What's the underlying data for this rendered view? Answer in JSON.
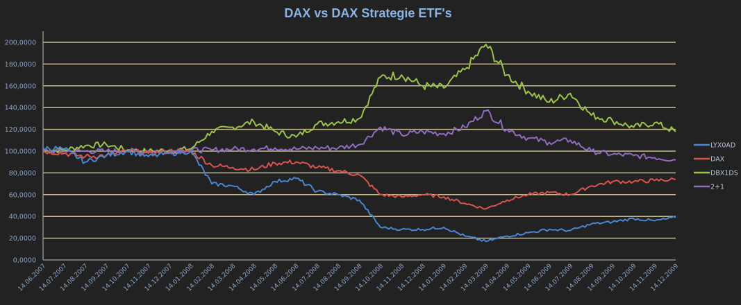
{
  "chart_data": {
    "type": "line",
    "title": "DAX vs DAX Strategie ETF's",
    "xlabel": "",
    "ylabel": "",
    "ylim": [
      0,
      200
    ],
    "yticks": [
      "0,0000",
      "20,0000",
      "40,0000",
      "60,0000",
      "80,0000",
      "100,0000",
      "120,0000",
      "140,0000",
      "160,0000",
      "180,0000",
      "200,0000"
    ],
    "grid": true,
    "legend_position": "right",
    "categories": [
      "14.06.2007",
      "14.07.2007",
      "14.08.2007",
      "14.09.2007",
      "14.10.2007",
      "14.11.2007",
      "14.12.2007",
      "14.01.2008",
      "14.02.2008",
      "14.03.2008",
      "14.04.2008",
      "14.05.2008",
      "14.06.2008",
      "14.07.2008",
      "14.08.2008",
      "14.09.2008",
      "14.10.2008",
      "14.11.2008",
      "14.12.2008",
      "14.01.2009",
      "14.02.2009",
      "14.03.2009",
      "14.04.2009",
      "14.05.2009",
      "14.06.2009",
      "14.07.2009",
      "14.08.2009",
      "14.09.2009",
      "14.10.2009",
      "14.11.2009",
      "14.12.2009"
    ],
    "series": [
      {
        "name": "LYX0AD",
        "color": "#4a86d0",
        "values": [
          103,
          102,
          90,
          96,
          100,
          95,
          98,
          100,
          70,
          68,
          60,
          72,
          75,
          63,
          60,
          55,
          30,
          28,
          28,
          30,
          22,
          17,
          22,
          25,
          28,
          27,
          33,
          35,
          38,
          36,
          39
        ]
      },
      {
        "name": "DAX",
        "color": "#d9534f",
        "values": [
          100,
          98,
          95,
          96,
          100,
          98,
          100,
          100,
          87,
          85,
          83,
          89,
          90,
          85,
          82,
          78,
          60,
          58,
          60,
          58,
          52,
          47,
          55,
          60,
          62,
          60,
          68,
          72,
          72,
          73,
          74
        ]
      },
      {
        "name": "DBX1DS",
        "color": "#9bc34a",
        "values": [
          100,
          101,
          105,
          106,
          101,
          100,
          101,
          102,
          118,
          122,
          127,
          118,
          113,
          125,
          127,
          130,
          168,
          170,
          160,
          158,
          175,
          198,
          170,
          155,
          145,
          153,
          133,
          128,
          122,
          126,
          118
        ]
      },
      {
        "name": "2+1",
        "color": "#8f6cc0",
        "values": [
          100,
          100,
          100,
          100,
          100,
          100,
          100,
          101,
          101,
          102,
          102,
          103,
          102,
          103,
          103,
          106,
          122,
          115,
          118,
          116,
          122,
          137,
          120,
          112,
          108,
          110,
          100,
          97,
          96,
          94,
          92
        ]
      }
    ]
  },
  "colors": {
    "background": "#222222",
    "gridline": "#c8b98e",
    "axis": "#8c8c8c",
    "title": "#8db3e2",
    "tick_text": "#8aa4c8"
  }
}
